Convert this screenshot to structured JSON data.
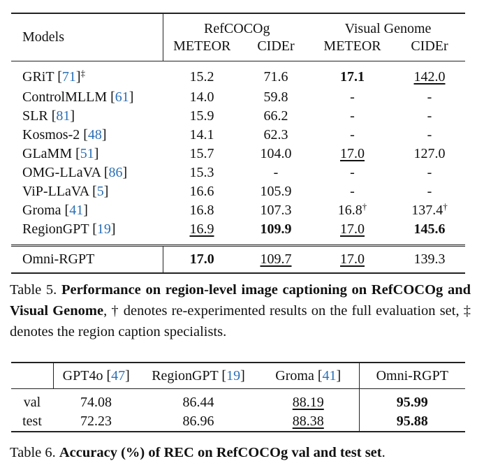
{
  "table5": {
    "models_header": "Models",
    "groups": [
      "RefCOCOg",
      "Visual Genome"
    ],
    "columns": [
      "METEOR",
      "CIDEr",
      "METEOR",
      "CIDEr"
    ],
    "rows": [
      {
        "model": "GRiT [71]‡",
        "cells": [
          {
            "text": "15.2"
          },
          {
            "text": "71.6"
          },
          {
            "text": "17.1",
            "bold": true
          },
          {
            "text": "142.0",
            "underline": true
          }
        ]
      },
      {
        "model": "ControlMLLM [61]",
        "cells": [
          {
            "text": "14.0"
          },
          {
            "text": "59.8"
          },
          {
            "text": "-"
          },
          {
            "text": "-"
          }
        ]
      },
      {
        "model": "SLR [81]",
        "cells": [
          {
            "text": "15.9"
          },
          {
            "text": "66.2"
          },
          {
            "text": "-"
          },
          {
            "text": "-"
          }
        ]
      },
      {
        "model": "Kosmos-2 [48]",
        "cells": [
          {
            "text": "14.1"
          },
          {
            "text": "62.3"
          },
          {
            "text": "-"
          },
          {
            "text": "-"
          }
        ]
      },
      {
        "model": "GLaMM [51]",
        "cells": [
          {
            "text": "15.7"
          },
          {
            "text": "104.0"
          },
          {
            "text": "17.0",
            "underline": true
          },
          {
            "text": "127.0"
          }
        ]
      },
      {
        "model": "OMG-LLaVA [86]",
        "cells": [
          {
            "text": "15.3"
          },
          {
            "text": "-"
          },
          {
            "text": "-"
          },
          {
            "text": "-"
          }
        ]
      },
      {
        "model": "ViP-LLaVA [5]",
        "cells": [
          {
            "text": "16.6"
          },
          {
            "text": "105.9"
          },
          {
            "text": "-"
          },
          {
            "text": "-"
          }
        ]
      },
      {
        "model": "Groma [41]",
        "cells": [
          {
            "text": "16.8"
          },
          {
            "text": "107.3"
          },
          {
            "text": "16.8†"
          },
          {
            "text": "137.4†"
          }
        ]
      },
      {
        "model": "RegionGPT [19]",
        "cells": [
          {
            "text": "16.9",
            "underline": true
          },
          {
            "text": "109.9",
            "bold": true
          },
          {
            "text": "17.0",
            "underline": true
          },
          {
            "text": "145.6",
            "bold": true
          }
        ]
      },
      {
        "model": "Omni-RGPT",
        "cells": [
          {
            "text": "17.0",
            "bold": true
          },
          {
            "text": "109.7",
            "underline": true
          },
          {
            "text": "17.0",
            "underline": true
          },
          {
            "text": "139.3"
          }
        ]
      }
    ],
    "caption": {
      "label": "Table 5.",
      "bold": "Performance on region-level image captioning on RefCOCOg and Visual Genome",
      "rest": ", † denotes re-experimented results on the full evaluation set, ‡ denotes the region caption specialists."
    }
  },
  "table6": {
    "columns": [
      "GPT4o [47]",
      "RegionGPT [19]",
      "Groma [41]",
      "Omni-RGPT"
    ],
    "rows": [
      {
        "label": "val",
        "cells": [
          {
            "text": "74.08"
          },
          {
            "text": "86.44"
          },
          {
            "text": "88.19",
            "underline": true
          },
          {
            "text": "95.99",
            "bold": true
          }
        ]
      },
      {
        "label": "test",
        "cells": [
          {
            "text": "72.23"
          },
          {
            "text": "86.96"
          },
          {
            "text": "88.38",
            "underline": true
          },
          {
            "text": "95.88",
            "bold": true
          }
        ]
      }
    ],
    "caption": {
      "label": "Table 6.",
      "bold": "Accuracy (%) of REC on RefCOCOg val and test set",
      "rest": "."
    }
  }
}
